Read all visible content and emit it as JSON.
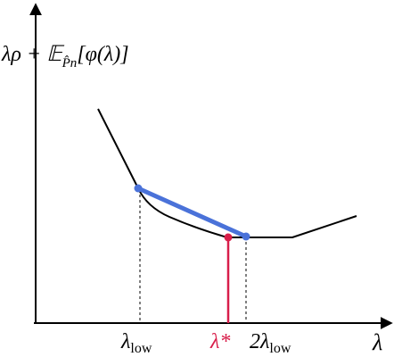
{
  "y_axis_label": {
    "main": "λρ + 𝔼",
    "sub": "P̂n",
    "rest": "[φ(λ)]"
  },
  "x_axis_label": "λ",
  "markers": [
    {
      "main": "λ",
      "sub": "low"
    },
    {
      "main": "λ*"
    },
    {
      "main": "2λ",
      "sub": "low"
    }
  ]
}
